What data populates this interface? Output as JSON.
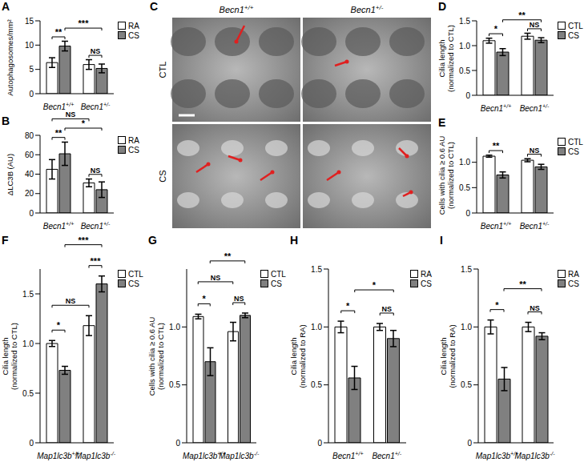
{
  "chart_data": [
    {
      "type": "bar",
      "title": "A",
      "ylabel": [
        "Autophagosomes/mm²"
      ],
      "categories": [
        "Becn1+/+",
        "Becn1+/-"
      ],
      "series": [
        {
          "name": "RA",
          "color": "#ffffff",
          "values": [
            6.4,
            6.0
          ],
          "errors": [
            1.0,
            1.0
          ]
        },
        {
          "name": "CS",
          "color": "#808080",
          "values": [
            9.8,
            5.2
          ],
          "errors": [
            1.0,
            0.9
          ]
        }
      ],
      "ylim": [
        0,
        15
      ],
      "yticks": [
        0,
        5,
        10,
        15
      ],
      "legend": "top right",
      "annotations": [
        {
          "text": "**",
          "bars": [
            [
              0,
              0
            ],
            [
              0,
              1
            ]
          ]
        },
        {
          "text": "NS",
          "bars": [
            [
              1,
              0
            ],
            [
              1,
              1
            ]
          ]
        },
        {
          "text": "***",
          "bars": [
            [
              0,
              1
            ],
            [
              1,
              1
            ]
          ]
        }
      ]
    },
    {
      "type": "bar",
      "title": "B",
      "ylabel": [
        "ΔLC3B (AU)"
      ],
      "categories": [
        "Becn1+/+",
        "Becn1+/-"
      ],
      "series": [
        {
          "name": "RA",
          "color": "#ffffff",
          "values": [
            45,
            31
          ],
          "errors": [
            10,
            4
          ]
        },
        {
          "name": "CS",
          "color": "#808080",
          "values": [
            61,
            24
          ],
          "errors": [
            12,
            8
          ]
        }
      ],
      "ylim": [
        0,
        80
      ],
      "yticks": [
        0,
        20,
        40,
        60,
        80
      ],
      "legend": "top right",
      "annotations": [
        {
          "text": "**",
          "bars": [
            [
              0,
              0
            ],
            [
              0,
              1
            ]
          ]
        },
        {
          "text": "NS",
          "bars": [
            [
              1,
              0
            ],
            [
              1,
              1
            ]
          ]
        },
        {
          "text": "*",
          "bars": [
            [
              0,
              1
            ],
            [
              1,
              1
            ]
          ]
        },
        {
          "text": "NS",
          "bars": [
            [
              0,
              0
            ],
            [
              1,
              0
            ]
          ]
        }
      ]
    },
    {
      "type": "bar",
      "title": "D",
      "ylabel": [
        "Cilia length",
        "(normalized to CTL)"
      ],
      "categories": [
        "Becn1+/+",
        "Becn1+/-"
      ],
      "series": [
        {
          "name": "CTL",
          "color": "#ffffff",
          "values": [
            1.1,
            1.19
          ],
          "errors": [
            0.05,
            0.06
          ]
        },
        {
          "name": "CS",
          "color": "#808080",
          "values": [
            0.87,
            1.11
          ],
          "errors": [
            0.07,
            0.05
          ]
        }
      ],
      "ylim": [
        0,
        1.5
      ],
      "yticks": [
        0,
        0.5,
        {
          "value": 1,
          "label": "1.0"
        },
        1.5
      ],
      "legend": "top right",
      "annotations": [
        {
          "text": "*",
          "bars": [
            [
              0,
              0
            ],
            [
              0,
              1
            ]
          ]
        },
        {
          "text": "NS",
          "bars": [
            [
              1,
              0
            ],
            [
              1,
              1
            ]
          ]
        },
        {
          "text": "**",
          "bars": [
            [
              0,
              1
            ],
            [
              1,
              1
            ]
          ]
        }
      ]
    },
    {
      "type": "bar",
      "title": "E",
      "ylabel": [
        "Cells with cilia ≥ 0.6 AU",
        "(normalized to CTL)"
      ],
      "categories": [
        "Becn1+/+",
        "Becn1+/-"
      ],
      "series": [
        {
          "name": "CTL",
          "color": "#ffffff",
          "values": [
            1.12,
            1.04
          ],
          "errors": [
            0.02,
            0.03
          ]
        },
        {
          "name": "CS",
          "color": "#808080",
          "values": [
            0.75,
            0.91
          ],
          "errors": [
            0.06,
            0.05
          ]
        }
      ],
      "ylim": [
        0,
        1.5
      ],
      "yticks": [
        0,
        0.5,
        {
          "value": 1,
          "label": "1.0"
        }
      ],
      "legend": "top right",
      "annotations": [
        {
          "text": "**",
          "bars": [
            [
              0,
              0
            ],
            [
              0,
              1
            ]
          ]
        },
        {
          "text": "NS",
          "bars": [
            [
              1,
              0
            ],
            [
              1,
              1
            ]
          ]
        }
      ]
    },
    {
      "type": "bar",
      "title": "F",
      "ylabel": [
        "Cilia length",
        "(normalized to CTL)"
      ],
      "categories": [
        "Map1lc3b+/+",
        "Map1lc3b-/-"
      ],
      "series": [
        {
          "name": "CTL",
          "color": "#ffffff",
          "values": [
            1.0,
            1.18
          ],
          "errors": [
            0.03,
            0.1
          ]
        },
        {
          "name": "CS",
          "color": "#808080",
          "values": [
            0.73,
            1.6
          ],
          "errors": [
            0.04,
            0.08
          ]
        }
      ],
      "ylim": [
        0,
        1.75
      ],
      "yticks": [
        0,
        0.5,
        {
          "value": 1,
          "label": "1.0"
        },
        1.5
      ],
      "legend": "top right",
      "annotations": [
        {
          "text": "*",
          "bars": [
            [
              0,
              0
            ],
            [
              0,
              1
            ]
          ]
        },
        {
          "text": "NS",
          "bars": [
            [
              0,
              0
            ],
            [
              1,
              0
            ]
          ]
        },
        {
          "text": "***",
          "bars": [
            [
              1,
              0
            ],
            [
              1,
              1
            ]
          ]
        },
        {
          "text": "***",
          "bars": [
            [
              0,
              1
            ],
            [
              1,
              1
            ]
          ]
        }
      ]
    },
    {
      "type": "bar",
      "title": "G",
      "ylabel": [
        "Cells with cilia ≥ 0.6 AU",
        "(normalized to CTL)"
      ],
      "categories": [
        "Map1lc3b+/+",
        "Map1lc3b-/-"
      ],
      "series": [
        {
          "name": "CTL",
          "color": "#ffffff",
          "values": [
            1.09,
            0.96
          ],
          "errors": [
            0.02,
            0.08
          ]
        },
        {
          "name": "CS",
          "color": "#808080",
          "values": [
            0.7,
            1.1
          ],
          "errors": [
            0.12,
            0.02
          ]
        }
      ],
      "ylim": [
        0,
        1.5
      ],
      "yticks": [
        0,
        0.5,
        {
          "value": 1,
          "label": "1.0"
        }
      ],
      "legend": "top right",
      "annotations": [
        {
          "text": "*",
          "bars": [
            [
              0,
              0
            ],
            [
              0,
              1
            ]
          ]
        },
        {
          "text": "NS",
          "bars": [
            [
              1,
              0
            ],
            [
              1,
              1
            ]
          ]
        },
        {
          "text": "NS",
          "bars": [
            [
              0,
              0
            ],
            [
              1,
              0
            ]
          ]
        },
        {
          "text": "**",
          "bars": [
            [
              0,
              1
            ],
            [
              1,
              1
            ]
          ]
        }
      ]
    },
    {
      "type": "bar",
      "title": "H",
      "ylabel": [
        "Cilia length",
        "(normalized to RA)"
      ],
      "categories": [
        "Becn1+/+",
        "Becn1+/-"
      ],
      "series": [
        {
          "name": "RA",
          "color": "#ffffff",
          "values": [
            1.0,
            1.0
          ],
          "errors": [
            0.05,
            0.03
          ]
        },
        {
          "name": "CS",
          "color": "#808080",
          "values": [
            0.56,
            0.9
          ],
          "errors": [
            0.1,
            0.07
          ]
        }
      ],
      "ylim": [
        0,
        1.5
      ],
      "yticks": [
        0,
        0.5,
        {
          "value": 1,
          "label": "1.0"
        },
        1.5
      ],
      "legend": "top right",
      "annotations": [
        {
          "text": "*",
          "bars": [
            [
              0,
              0
            ],
            [
              0,
              1
            ]
          ]
        },
        {
          "text": "NS",
          "bars": [
            [
              1,
              0
            ],
            [
              1,
              1
            ]
          ]
        },
        {
          "text": "*",
          "bars": [
            [
              0,
              1
            ],
            [
              1,
              1
            ]
          ]
        }
      ]
    },
    {
      "type": "bar",
      "title": "I",
      "ylabel": [
        "Cilia length",
        "(normalized to RA)"
      ],
      "categories": [
        "Map1lc3b+/+",
        "Map1lc3b-/-"
      ],
      "series": [
        {
          "name": "RA",
          "color": "#ffffff",
          "values": [
            1.0,
            1.0
          ],
          "errors": [
            0.06,
            0.04
          ]
        },
        {
          "name": "CS",
          "color": "#808080",
          "values": [
            0.55,
            0.92
          ],
          "errors": [
            0.1,
            0.03
          ]
        }
      ],
      "ylim": [
        0,
        1.5
      ],
      "yticks": [
        0,
        0.5,
        {
          "value": 1,
          "label": "1.0"
        },
        1.5
      ],
      "legend": "top right",
      "annotations": [
        {
          "text": "*",
          "bars": [
            [
              0,
              0
            ],
            [
              0,
              1
            ]
          ]
        },
        {
          "text": "NS",
          "bars": [
            [
              1,
              0
            ],
            [
              1,
              1
            ]
          ]
        },
        {
          "text": "**",
          "bars": [
            [
              0,
              1
            ],
            [
              1,
              1
            ]
          ]
        }
      ]
    }
  ],
  "image_panel": {
    "title": "C",
    "columns": [
      "Becn1+/+",
      "Becn1+/-"
    ],
    "rows": [
      "CTL",
      "CS"
    ]
  }
}
